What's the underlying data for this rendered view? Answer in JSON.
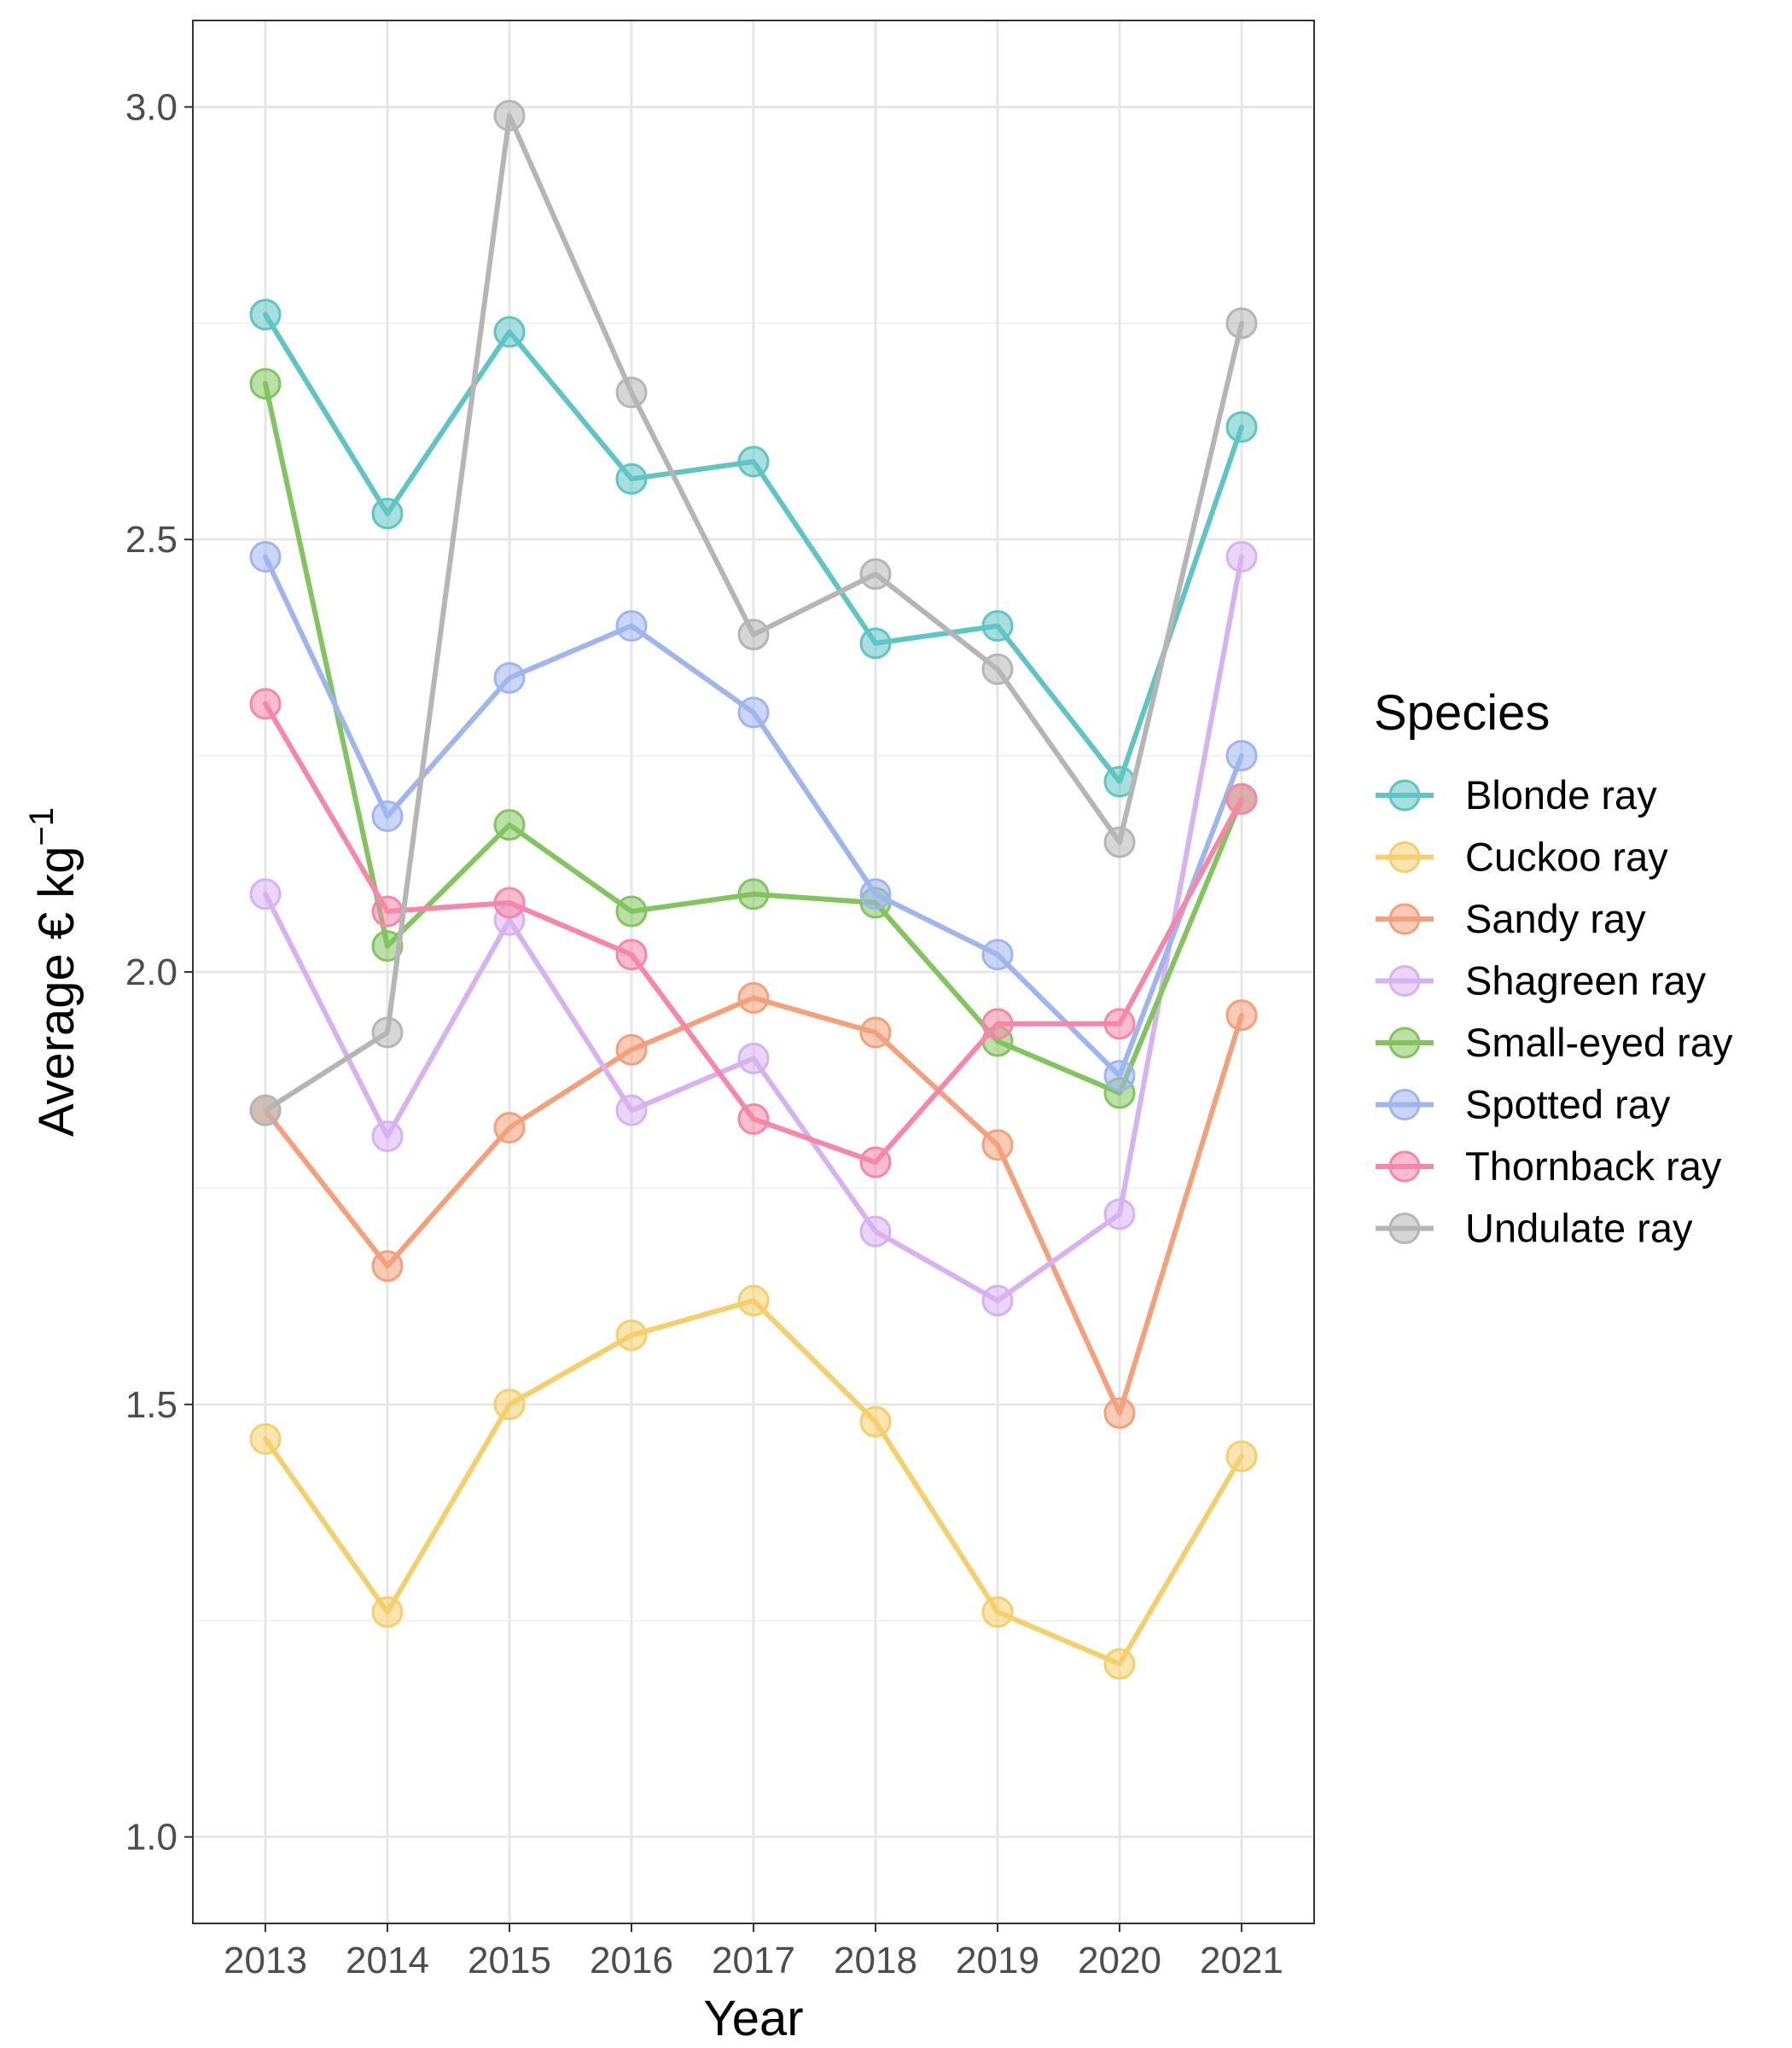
{
  "chart_data": {
    "type": "line",
    "xlabel": "Year",
    "ylabel_main": "Average € kg",
    "ylabel_sup": "−1",
    "x": [
      "2013",
      "2014",
      "2015",
      "2016",
      "2017",
      "2018",
      "2019",
      "2020",
      "2021"
    ],
    "ylim": [
      0.9,
      3.1
    ],
    "y_ticks": [
      "1.0",
      "1.5",
      "2.0",
      "2.5",
      "3.0"
    ],
    "grid": true,
    "legend_title": "Species",
    "legend_position": "right",
    "series": [
      {
        "name": "Blonde ray",
        "color": "#5ec4c4",
        "values": [
          2.76,
          2.53,
          2.74,
          2.57,
          2.59,
          2.38,
          2.4,
          2.22,
          2.63
        ]
      },
      {
        "name": "Cuckoo ray",
        "color": "#f5cf6b",
        "values": [
          1.46,
          1.26,
          1.5,
          1.58,
          1.62,
          1.48,
          1.26,
          1.2,
          1.44
        ]
      },
      {
        "name": "Sandy ray",
        "color": "#f4a07a",
        "values": [
          1.84,
          1.66,
          1.82,
          1.91,
          1.97,
          1.93,
          1.8,
          1.49,
          1.95
        ]
      },
      {
        "name": "Shagreen ray",
        "color": "#d8b2f0",
        "values": [
          2.09,
          1.81,
          2.06,
          1.84,
          1.9,
          1.7,
          1.62,
          1.72,
          2.48
        ]
      },
      {
        "name": "Small-eyed ray",
        "color": "#82c45e",
        "values": [
          2.68,
          2.03,
          2.17,
          2.07,
          2.09,
          2.08,
          1.92,
          1.86,
          2.2
        ]
      },
      {
        "name": "Spotted ray",
        "color": "#9fb5ef",
        "values": [
          2.48,
          2.18,
          2.34,
          2.4,
          2.3,
          2.09,
          2.02,
          1.88,
          2.25
        ]
      },
      {
        "name": "Thornback ray",
        "color": "#f686aa",
        "values": [
          2.31,
          2.07,
          2.08,
          2.02,
          1.83,
          1.78,
          1.94,
          1.94,
          2.2
        ]
      },
      {
        "name": "Undulate ray",
        "color": "#b5b5b5",
        "values": [
          1.84,
          1.93,
          2.99,
          2.67,
          2.39,
          2.46,
          2.35,
          2.15,
          2.75
        ]
      }
    ]
  }
}
